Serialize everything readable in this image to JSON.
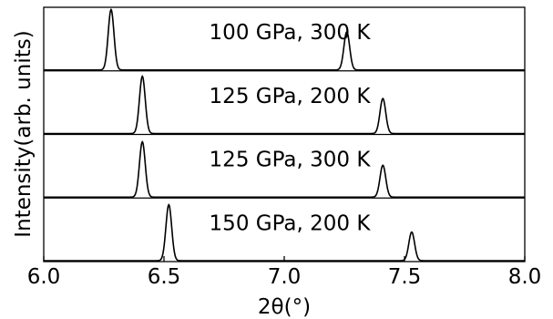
{
  "chart_data": {
    "type": "line",
    "xlabel": "2θ(°)",
    "ylabel": "Intensity(arb. units)",
    "xlim": [
      6.0,
      8.0
    ],
    "x_ticks": [
      "6.0",
      "6.5",
      "7.0",
      "7.5",
      "8.0"
    ],
    "y_ticks": [],
    "grid": false,
    "series": [
      {
        "name": "100 GPa, 300 K",
        "peaks": [
          {
            "x": 6.28,
            "height": 0.95
          },
          {
            "x": 7.26,
            "height": 0.6
          }
        ]
      },
      {
        "name": "125 GPa, 200 K",
        "peaks": [
          {
            "x": 6.41,
            "height": 0.9
          },
          {
            "x": 7.41,
            "height": 0.55
          }
        ]
      },
      {
        "name": "125 GPa, 300 K",
        "peaks": [
          {
            "x": 6.41,
            "height": 0.87
          },
          {
            "x": 7.41,
            "height": 0.5
          }
        ]
      },
      {
        "name": "150 GPa, 200 K",
        "peaks": [
          {
            "x": 6.52,
            "height": 0.88
          },
          {
            "x": 7.53,
            "height": 0.45
          }
        ]
      }
    ]
  }
}
